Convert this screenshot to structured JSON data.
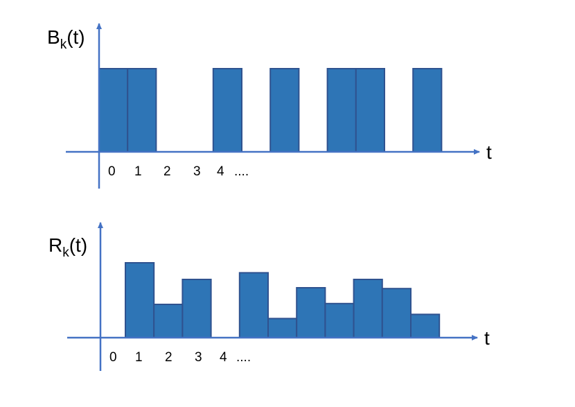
{
  "colors": {
    "axis": "#4472C4",
    "bar_fill": "#2E75B6",
    "bar_stroke": "#2F528F"
  },
  "panels": [
    {
      "id": "bk",
      "ylabel_main": "B",
      "ylabel_sub": "k",
      "ylabel_suffix": "(t)",
      "xlabel": "t",
      "tick_labels": [
        "0",
        "1",
        "2",
        "3",
        "4",
        "...."
      ],
      "bars": [
        1,
        1,
        0,
        0,
        1,
        0,
        1,
        0,
        1,
        1,
        0,
        1
      ]
    },
    {
      "id": "rk",
      "ylabel_main": "R",
      "ylabel_sub": "k",
      "ylabel_suffix": "(t)",
      "xlabel": "t",
      "tick_labels": [
        "0",
        "1",
        "2",
        "3",
        "4",
        "...."
      ],
      "bars": [
        0,
        0.9,
        0.4,
        0.7,
        0,
        0.78,
        0.23,
        0.6,
        0.41,
        0.7,
        0.59,
        0.28
      ]
    }
  ]
}
